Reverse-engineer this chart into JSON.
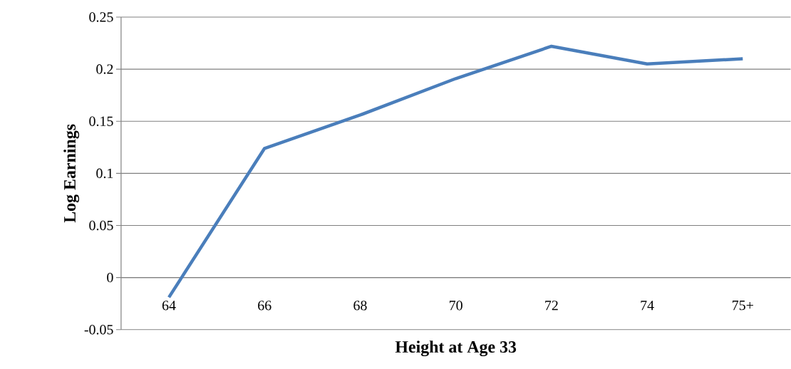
{
  "chart_data": {
    "type": "line",
    "xlabel": "Height at Age 33",
    "ylabel": "Log Earnings",
    "categories": [
      "64",
      "66",
      "68",
      "70",
      "72",
      "74",
      "75+"
    ],
    "values": [
      -0.019,
      0.124,
      0.156,
      0.191,
      0.222,
      0.205,
      0.21
    ],
    "color": "#4a7ebb",
    "ylim": [
      -0.05,
      0.25
    ],
    "yticks": [
      -0.05,
      0,
      0.05,
      0.1,
      0.15,
      0.2,
      0.25
    ],
    "grid": "y",
    "marker": "none",
    "line_style": "solid"
  }
}
